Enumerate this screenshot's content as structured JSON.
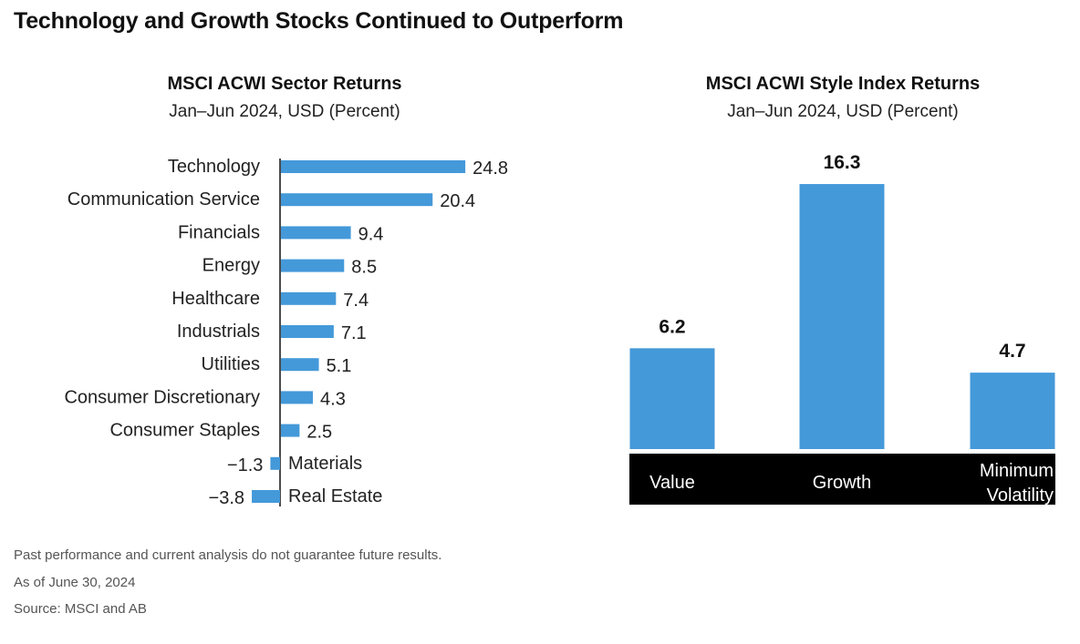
{
  "page": {
    "title": "Technology and Growth Stocks Continued to Outperform",
    "footnotes": [
      "Past performance and current analysis do not guarantee future results.",
      "As of June 30, 2024",
      "Source: MSCI and AB"
    ]
  },
  "colors": {
    "bar": "#4499d9",
    "category_band": "#000000",
    "band_text": "#ffffff",
    "text": "#111111"
  },
  "chart_data": [
    {
      "type": "bar",
      "orientation": "horizontal",
      "title": "MSCI ACWI Sector Returns",
      "subtitle": "Jan–Jun 2024, USD (Percent)",
      "categories": [
        "Technology",
        "Communication Service",
        "Financials",
        "Energy",
        "Healthcare",
        "Industrials",
        "Utilities",
        "Consumer Discretionary",
        "Consumer Staples",
        "Materials",
        "Real Estate"
      ],
      "values": [
        24.8,
        20.4,
        9.4,
        8.5,
        7.4,
        7.1,
        5.1,
        4.3,
        2.5,
        -1.3,
        -3.8
      ],
      "value_labels": [
        "24.8",
        "20.4",
        "9.4",
        "8.5",
        "7.4",
        "7.1",
        "5.1",
        "4.3",
        "2.5",
        "−1.3",
        "−3.8"
      ],
      "grid": false,
      "legend": "none"
    },
    {
      "type": "bar",
      "orientation": "vertical",
      "title": "MSCI ACWI Style Index Returns",
      "subtitle": "Jan–Jun 2024, USD (Percent)",
      "categories": [
        "Value",
        "Growth",
        "Minimum\nVolatility"
      ],
      "values": [
        6.2,
        16.3,
        4.7
      ],
      "value_labels": [
        "6.2",
        "16.3",
        "4.7"
      ],
      "grid": false,
      "legend": "none"
    }
  ]
}
